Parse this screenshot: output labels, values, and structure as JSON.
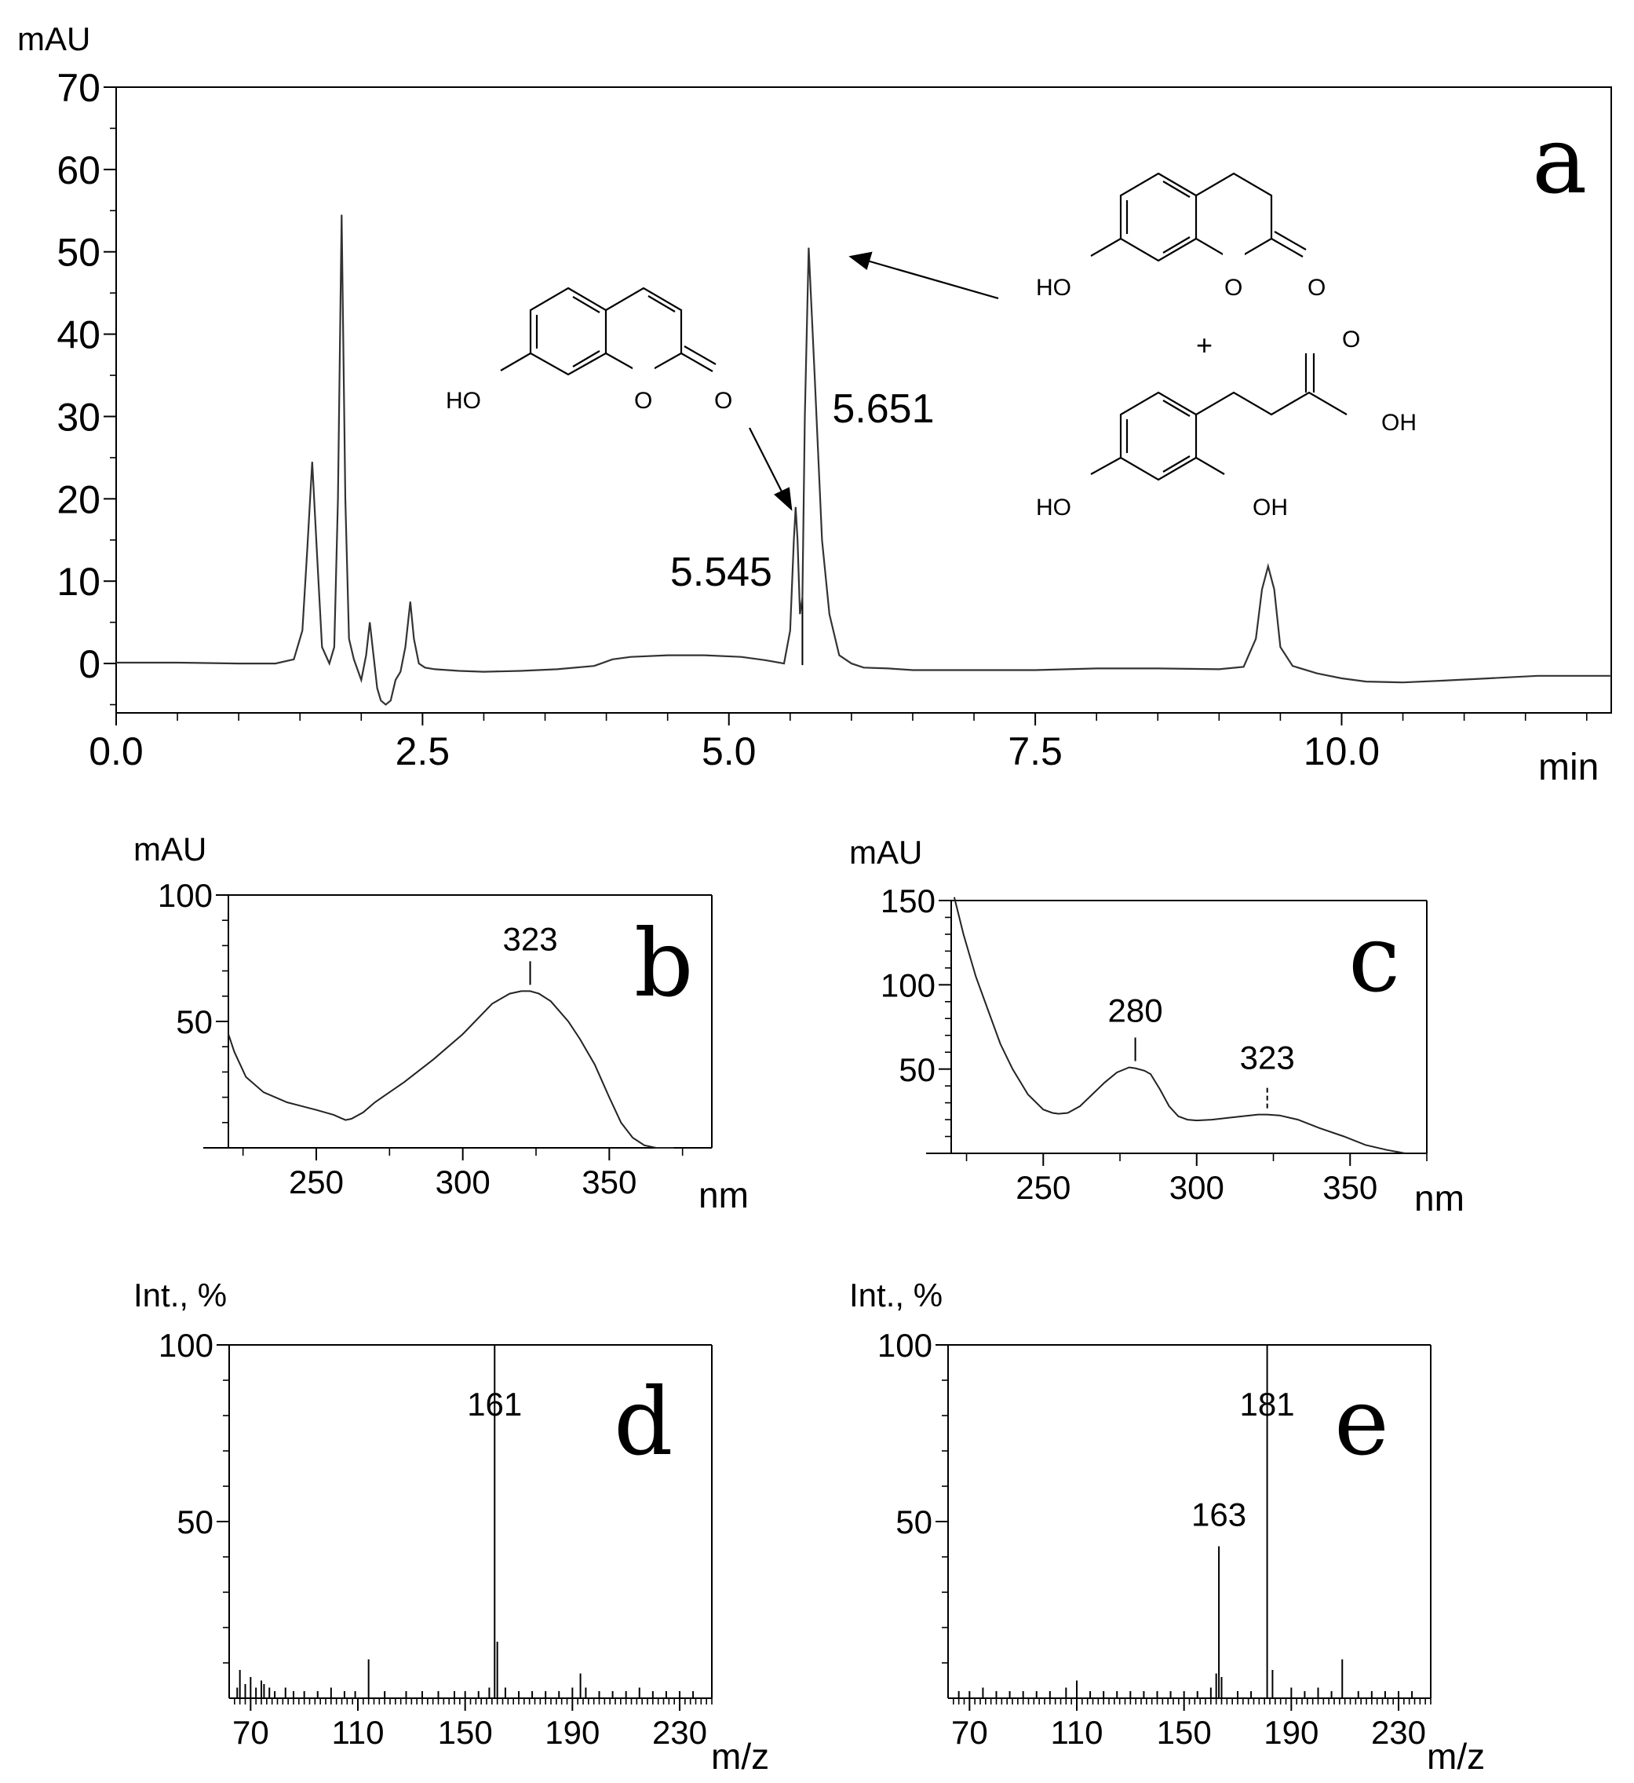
{
  "chart_data": [
    {
      "type": "line",
      "panel": "a",
      "xlabel": "min",
      "ylabel": "mAU",
      "xlim": [
        0.0,
        12.2
      ],
      "ylim": [
        -6,
        70
      ],
      "xticks": [
        0.0,
        2.5,
        5.0,
        7.5,
        10.0
      ],
      "xtick_labels": [
        "0.0",
        "2.5",
        "5.0",
        "7.5",
        "10.0"
      ],
      "yticks": [
        0,
        10,
        20,
        30,
        40,
        50,
        60,
        70
      ],
      "ytick_labels": [
        "0",
        "10",
        "20",
        "30",
        "40",
        "50",
        "60",
        "70"
      ],
      "peak_labels": [
        {
          "x": 5.545,
          "text": "5.545"
        },
        {
          "x": 5.651,
          "text": "5.651"
        }
      ],
      "structure_labels": {
        "umbelliferone": {
          "ho": "HO",
          "o_ring": "O",
          "o_carbonyl": "O"
        },
        "dihydrocoumarin": {
          "ho": "HO",
          "o_ring": "O",
          "o_carbonyl": "O"
        },
        "plus": "+",
        "acid": {
          "o_carbonyl": "O",
          "oh_acid": "OH",
          "ho_4": "HO",
          "oh_2": "OH"
        }
      },
      "series": [
        {
          "x": [
            0.0,
            0.5,
            1.0,
            1.3,
            1.45,
            1.52,
            1.56,
            1.6,
            1.64,
            1.68,
            1.74,
            1.78,
            1.81,
            1.84,
            1.87,
            1.9,
            1.94,
            2.0,
            2.04,
            2.07,
            2.1,
            2.13,
            2.16,
            2.2,
            2.24,
            2.28,
            2.32,
            2.36,
            2.4,
            2.43,
            2.47,
            2.52,
            2.6,
            2.8,
            3.0,
            3.3,
            3.6,
            3.9,
            4.05,
            4.2,
            4.5,
            4.8,
            5.1,
            5.3,
            5.45,
            5.5,
            5.53,
            5.545,
            5.56,
            5.58,
            5.6,
            5.62,
            5.651,
            5.7,
            5.76,
            5.82,
            5.9,
            6.0,
            6.1,
            6.3,
            6.5,
            7.0,
            7.5,
            8.0,
            8.5,
            9.0,
            9.2,
            9.3,
            9.35,
            9.4,
            9.45,
            9.5,
            9.6,
            9.8,
            10.0,
            10.2,
            10.5,
            10.8,
            11.2,
            11.6,
            12.2
          ],
          "y": [
            0.1,
            0.1,
            0.0,
            0.0,
            0.5,
            4.0,
            14.0,
            24.5,
            13.0,
            2.0,
            0.0,
            2.0,
            20.0,
            54.5,
            20.0,
            3.0,
            0.5,
            -2.0,
            1.0,
            5.0,
            1.0,
            -3.0,
            -4.5,
            -5.0,
            -4.5,
            -2.0,
            -1.0,
            2.0,
            7.5,
            3.0,
            0.0,
            -0.5,
            -0.7,
            -0.9,
            -1.0,
            -0.9,
            -0.7,
            -0.3,
            0.5,
            0.8,
            1.0,
            1.0,
            0.8,
            0.4,
            0.0,
            4.0,
            15.0,
            19.0,
            15.0,
            6.0,
            8.0,
            30.0,
            50.5,
            35.0,
            15.0,
            6.0,
            1.0,
            0.0,
            -0.5,
            -0.6,
            -0.8,
            -0.8,
            -0.8,
            -0.6,
            -0.6,
            -0.7,
            -0.4,
            3.0,
            9.0,
            11.8,
            9.0,
            2.0,
            -0.3,
            -1.2,
            -1.8,
            -2.2,
            -2.3,
            -2.1,
            -1.8,
            -1.5,
            -1.5
          ]
        }
      ]
    },
    {
      "type": "line",
      "panel": "b",
      "xlabel": "nm",
      "ylabel": "mAU",
      "xlim": [
        220,
        385
      ],
      "ylim": [
        0,
        100
      ],
      "xticks": [
        250,
        300,
        350
      ],
      "xtick_labels": [
        "250",
        "300",
        "350"
      ],
      "yticks": [
        50,
        100
      ],
      "ytick_labels": [
        "50",
        "100"
      ],
      "peak_labels": [
        {
          "x": 323,
          "text": "323"
        }
      ],
      "series": [
        {
          "x": [
            220,
            222,
            226,
            232,
            240,
            250,
            256,
            258,
            260,
            262,
            266,
            270,
            280,
            290,
            300,
            310,
            316,
            320,
            323,
            326,
            330,
            336,
            340,
            345,
            350,
            354,
            358,
            362,
            366,
            372
          ],
          "y": [
            45,
            38,
            28,
            22,
            18,
            15,
            13,
            12,
            11,
            11.5,
            14,
            18,
            26,
            35,
            45,
            57,
            61,
            62,
            62,
            61,
            58,
            50,
            43,
            33,
            20,
            10,
            4,
            1,
            0,
            0
          ]
        }
      ]
    },
    {
      "type": "line",
      "panel": "c",
      "xlabel": "nm",
      "ylabel": "mAU",
      "xlim": [
        220,
        375
      ],
      "ylim": [
        0,
        150
      ],
      "xticks": [
        250,
        300,
        350
      ],
      "xtick_labels": [
        "250",
        "300",
        "350"
      ],
      "yticks": [
        50,
        100,
        150
      ],
      "ytick_labels": [
        "50",
        "100",
        "150"
      ],
      "peak_labels": [
        {
          "x": 280,
          "text": "280"
        },
        {
          "x": 323,
          "text": "323"
        }
      ],
      "series": [
        {
          "x": [
            221,
            224,
            228,
            232,
            236,
            240,
            245,
            250,
            253,
            255,
            258,
            262,
            266,
            270,
            274,
            278,
            280,
            283,
            285,
            288,
            291,
            294,
            297,
            300,
            305,
            310,
            315,
            320,
            323,
            327,
            333,
            340,
            348,
            355,
            362,
            368
          ],
          "y": [
            152,
            130,
            105,
            85,
            65,
            50,
            35,
            26,
            24,
            23.5,
            24,
            28,
            35,
            42,
            48,
            51,
            50.5,
            49,
            47,
            38,
            28,
            22,
            20,
            19.5,
            20,
            21,
            22,
            23,
            23,
            22.5,
            20,
            15,
            10,
            5,
            2,
            0
          ]
        }
      ]
    },
    {
      "type": "bar",
      "panel": "d",
      "xlabel": "m/z",
      "ylabel": "Int., %",
      "xlim": [
        62,
        242
      ],
      "ylim": [
        0,
        100
      ],
      "xticks": [
        70,
        110,
        150,
        190,
        230
      ],
      "xtick_labels": [
        "70",
        "110",
        "150",
        "190",
        "230"
      ],
      "yticks": [
        50,
        100
      ],
      "ytick_labels": [
        "50",
        "100"
      ],
      "peak_labels": [
        {
          "x": 161,
          "text": "161"
        }
      ],
      "x": [
        65,
        66,
        68,
        70,
        72,
        74,
        75,
        77,
        79,
        83,
        86,
        90,
        95,
        100,
        105,
        109,
        114,
        120,
        128,
        134,
        140,
        146,
        150,
        155,
        159,
        161,
        162,
        165,
        170,
        175,
        180,
        185,
        190,
        193,
        195,
        200,
        205,
        210,
        215,
        220,
        225,
        230,
        235
      ],
      "values": [
        3,
        8,
        4,
        6,
        3,
        5,
        4,
        3,
        2,
        3,
        2,
        2,
        2,
        3,
        2,
        2,
        11,
        2,
        2,
        2,
        2,
        2,
        2,
        2,
        3,
        100,
        16,
        3,
        2,
        2,
        2,
        2,
        3,
        7,
        3,
        2,
        2,
        2,
        3,
        2,
        2,
        2,
        2
      ]
    },
    {
      "type": "bar",
      "panel": "e",
      "xlabel": "m/z",
      "ylabel": "Int., %",
      "xlim": [
        62,
        242
      ],
      "ylim": [
        0,
        100
      ],
      "xticks": [
        70,
        110,
        150,
        190,
        230
      ],
      "xtick_labels": [
        "70",
        "110",
        "150",
        "190",
        "230"
      ],
      "yticks": [
        50,
        100
      ],
      "ytick_labels": [
        "50",
        "100"
      ],
      "peak_labels": [
        {
          "x": 163,
          "text": "163"
        },
        {
          "x": 181,
          "text": "181"
        }
      ],
      "x": [
        66,
        70,
        75,
        80,
        85,
        90,
        95,
        100,
        106,
        110,
        115,
        120,
        125,
        130,
        135,
        140,
        145,
        150,
        155,
        160,
        162,
        163,
        164,
        170,
        175,
        181,
        183,
        190,
        195,
        200,
        205,
        209,
        215,
        220,
        225,
        230,
        235
      ],
      "values": [
        2,
        2,
        3,
        2,
        2,
        2,
        2,
        2,
        3,
        5,
        2,
        2,
        2,
        2,
        2,
        2,
        2,
        2,
        2,
        3,
        7,
        43,
        6,
        2,
        2,
        100,
        8,
        3,
        2,
        3,
        2,
        11,
        2,
        2,
        2,
        2,
        2
      ]
    }
  ],
  "panel_letters": {
    "a": "a",
    "b": "b",
    "c": "c",
    "d": "d",
    "e": "e"
  }
}
